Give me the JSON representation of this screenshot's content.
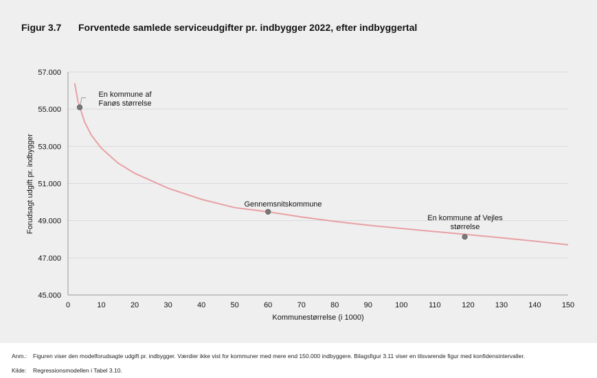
{
  "figure": {
    "number": "Figur 3.7",
    "title": "Forventede samlede serviceudgifter pr. indbygger 2022, efter indbyggertal"
  },
  "notes": [
    {
      "key": "Anm.:",
      "text": "Figuren viser den modelforudsagte udgift pr. indbygger. Værdier ikke vist for kommuner med mere end 150.000 indbyggere. Bilagsfigur 3.11 viser en tilsvarende figur med konfidensintervaller."
    },
    {
      "key": "Kilde:",
      "text": "Regressionsmodellen i Tabel 3.10."
    }
  ],
  "chart_data": {
    "type": "line",
    "title": "Forventede samlede serviceudgifter pr. indbygger 2022, efter indbyggertal",
    "xlabel": "Kommunestørrelse (i 1000)",
    "ylabel": "Forudsagt udgift pr. indbygger",
    "xlim": [
      0,
      150
    ],
    "ylim": [
      45000,
      57000
    ],
    "xticks": [
      "0",
      "10",
      "20",
      "30",
      "40",
      "50",
      "60",
      "70",
      "80",
      "90",
      "100",
      "110",
      "120",
      "130",
      "140",
      "150"
    ],
    "yticks": [
      "45.000",
      "47.000",
      "49.000",
      "51.000",
      "53.000",
      "55.000",
      "57.000"
    ],
    "grid": true,
    "line_color": "#e8a0a4",
    "series": [
      {
        "x": [
          2,
          3,
          5,
          7,
          10,
          15,
          20,
          30,
          40,
          50,
          60,
          70,
          80,
          90,
          100,
          110,
          120,
          130,
          140,
          150
        ],
        "values": [
          56400,
          55400,
          54300,
          53600,
          52900,
          52100,
          51550,
          50750,
          50150,
          49700,
          49480,
          49200,
          48960,
          48760,
          48580,
          48410,
          48250,
          48080,
          47900,
          47700
        ]
      }
    ],
    "points": [
      {
        "x": 3.5,
        "y": 55100,
        "color": "#777777"
      },
      {
        "x": 60,
        "y": 49480,
        "color": "#777777"
      },
      {
        "x": 119,
        "y": 48130,
        "color": "#777777"
      }
    ],
    "annotations": [
      {
        "lines": [
          "En kommune af",
          "Fanøs størrelse"
        ]
      },
      {
        "lines": [
          "Gennemsnitskommune"
        ]
      },
      {
        "lines": [
          "En kommune af Vejles",
          "størrelse"
        ]
      }
    ]
  }
}
